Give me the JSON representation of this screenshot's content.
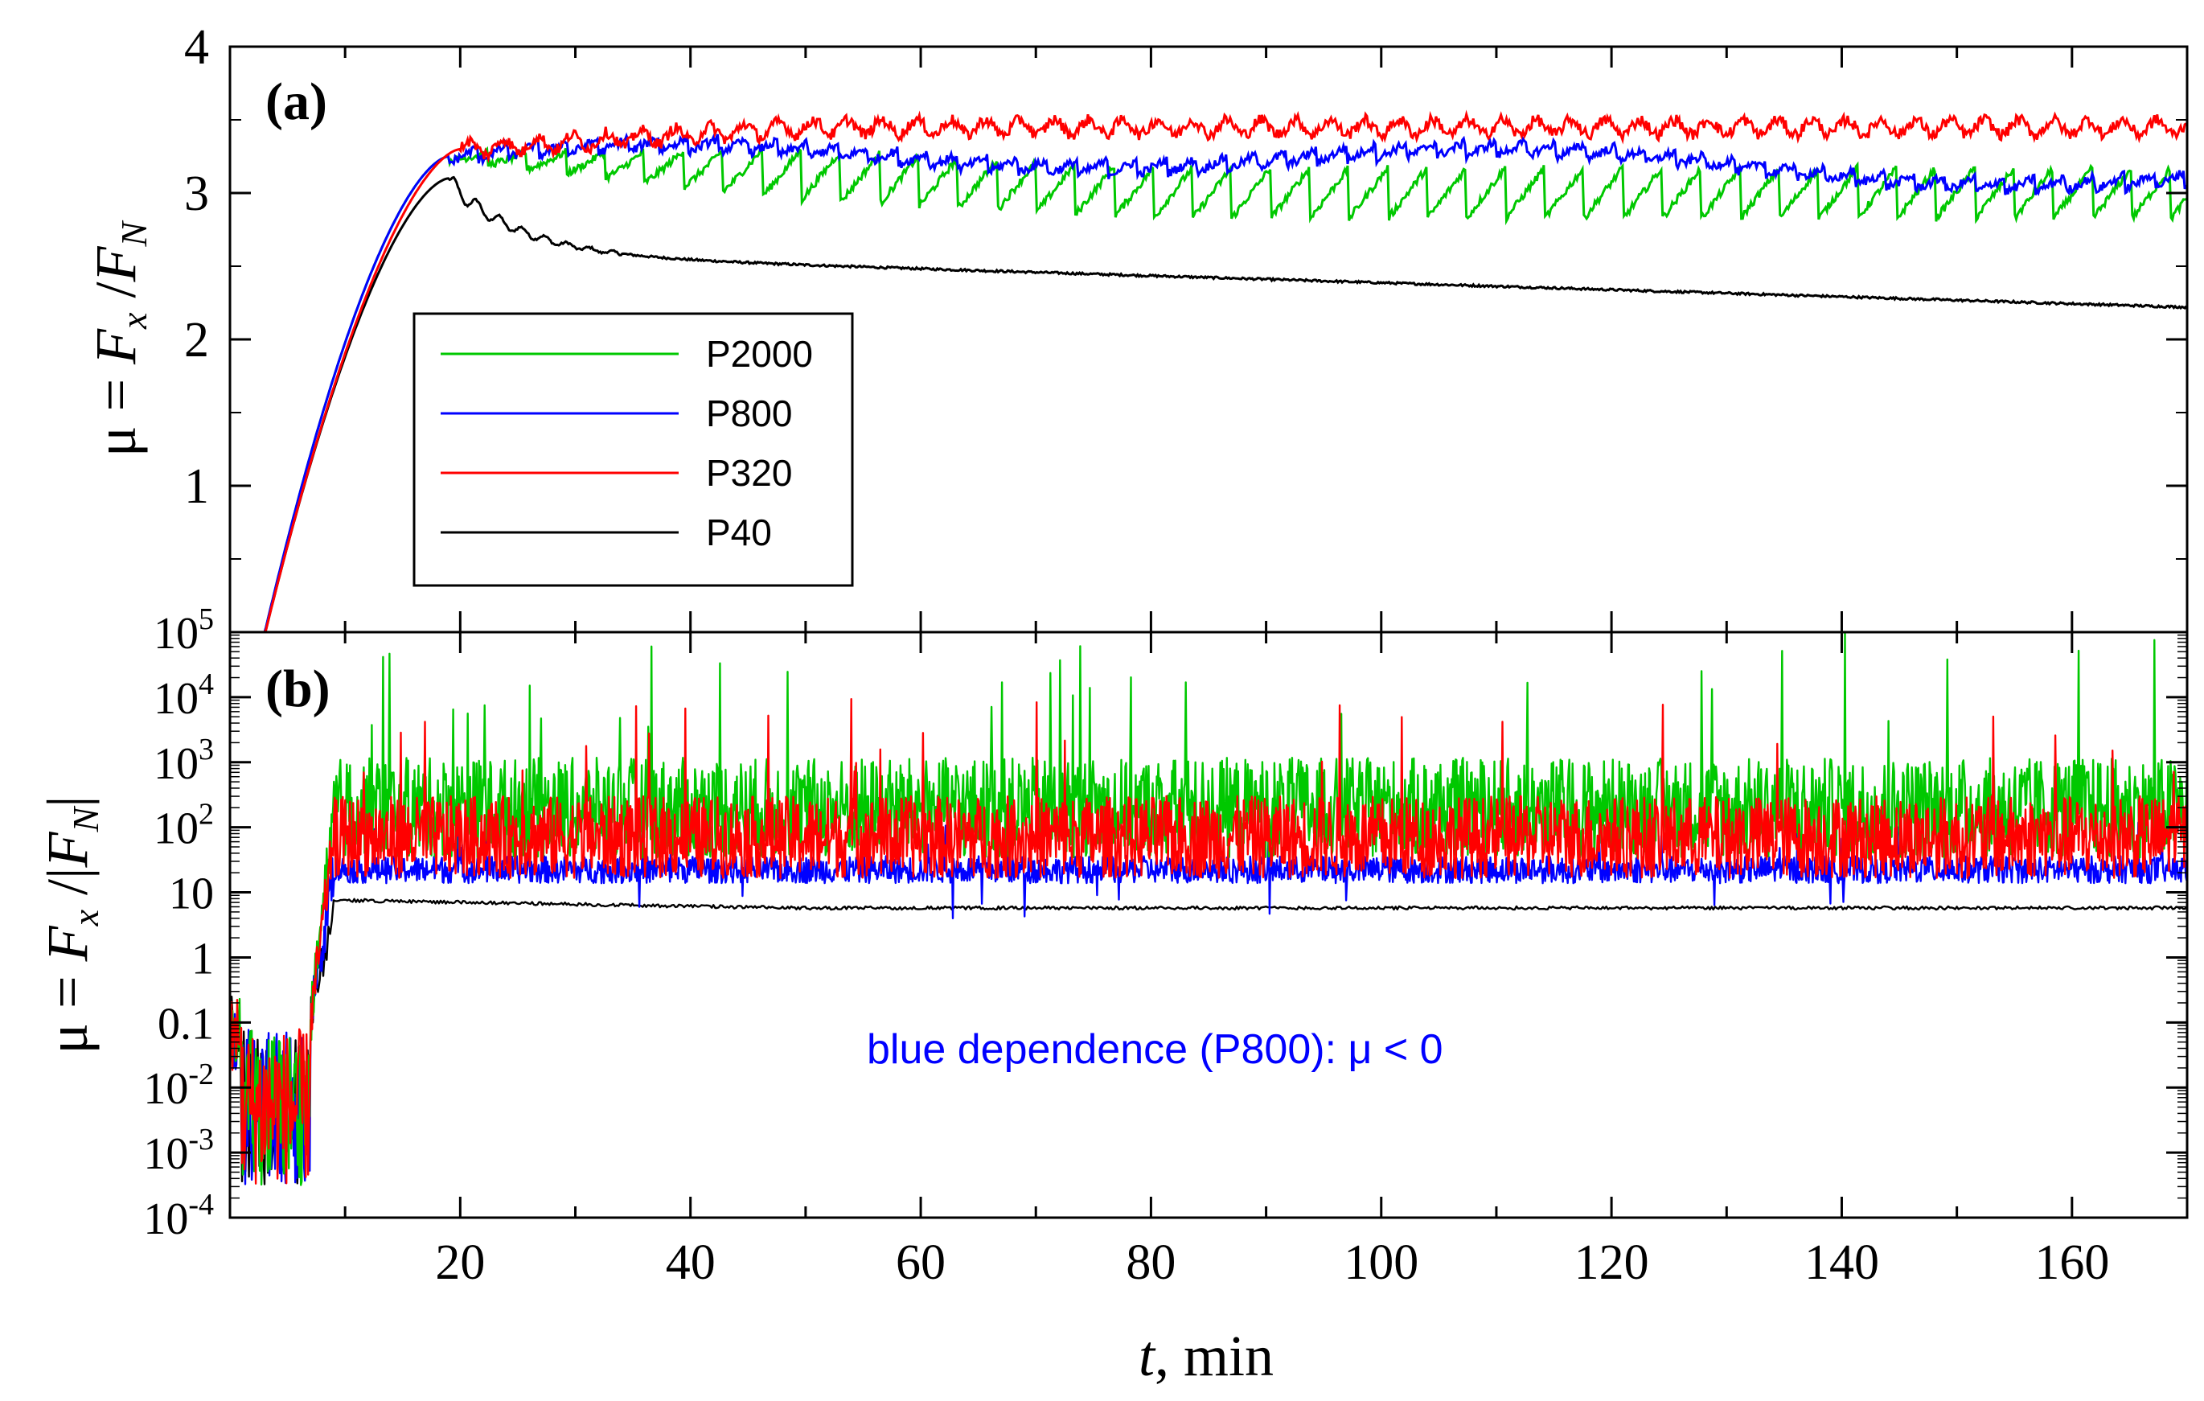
{
  "chart_data": [
    {
      "panel": "a",
      "panel_label": "(a)",
      "type": "line",
      "ylabel": "μ = F_x / F_N",
      "ylabel_parts": [
        "μ = ",
        "F",
        "x",
        " /",
        "F",
        "N"
      ],
      "xlabel": "",
      "xlim": [
        0,
        170
      ],
      "ylim": [
        0,
        4
      ],
      "yticks": [
        1,
        2,
        3,
        4
      ],
      "xticks": [
        20,
        40,
        60,
        80,
        100,
        120,
        140,
        160
      ],
      "legend_position": "middle-left",
      "series": [
        {
          "name": "P2000",
          "color": "#00c800",
          "ramp_end": 19,
          "peak": 3.25,
          "mean": 3.0,
          "sawtooth_amp": 0.35,
          "final": 2.85
        },
        {
          "name": "P800",
          "color": "#0000ff",
          "ramp_end": 19,
          "peak": 3.25,
          "mean": 3.3,
          "sawtooth_amp": 0.1,
          "final": 3.15
        },
        {
          "name": "P320",
          "color": "#ff0000",
          "ramp_end": 20,
          "peak": 3.3,
          "mean": 3.45,
          "sawtooth_amp": 0.08,
          "final": 3.45
        },
        {
          "name": "P40",
          "color": "#000000",
          "ramp_end": 19,
          "peak": 3.1,
          "mean": 2.4,
          "sawtooth_amp": 0.02,
          "final": 2.2
        }
      ]
    },
    {
      "panel": "b",
      "panel_label": "(b)",
      "type": "line",
      "yscale": "log",
      "ylabel": "μ = F_x / |F_N|",
      "ylabel_parts": [
        "μ = ",
        "F",
        "x",
        " /|",
        "F",
        "N",
        "|"
      ],
      "xlabel": "t, min",
      "xlabel_parts": [
        "t",
        ", min"
      ],
      "xlim": [
        0,
        170
      ],
      "ylim_exp": [
        -4,
        5
      ],
      "ytick_labels": [
        {
          "exp": 5,
          "base": "10",
          "sup": "5"
        },
        {
          "exp": 4,
          "base": "10",
          "sup": "4"
        },
        {
          "exp": 3,
          "base": "10",
          "sup": "3"
        },
        {
          "exp": 2,
          "base": "10",
          "sup": "2"
        },
        {
          "exp": 1,
          "base": "10",
          "sup": ""
        },
        {
          "exp": 0,
          "base": "1",
          "sup": ""
        },
        {
          "exp": -1,
          "base": "0.1",
          "sup": ""
        },
        {
          "exp": -2,
          "base": "10",
          "sup": "-2"
        },
        {
          "exp": -3,
          "base": "10",
          "sup": "-3"
        },
        {
          "exp": -4,
          "base": "10",
          "sup": "-4"
        }
      ],
      "xticks": [
        20,
        40,
        60,
        80,
        100,
        120,
        140,
        160
      ],
      "annotation": "blue dependence (P800): μ < 0",
      "series": [
        {
          "name": "P2000",
          "color": "#00c800",
          "baseline_exp": 2.3,
          "noise_exp": 1.1
        },
        {
          "name": "P800",
          "color": "#0000ff",
          "baseline_exp": 1.35,
          "noise_exp": 0.3
        },
        {
          "name": "P320",
          "color": "#ff0000",
          "baseline_exp": 1.85,
          "noise_exp": 0.9
        },
        {
          "name": "P40",
          "color": "#000000",
          "baseline_exp": 0.88,
          "noise_exp": 0.03
        }
      ]
    }
  ]
}
